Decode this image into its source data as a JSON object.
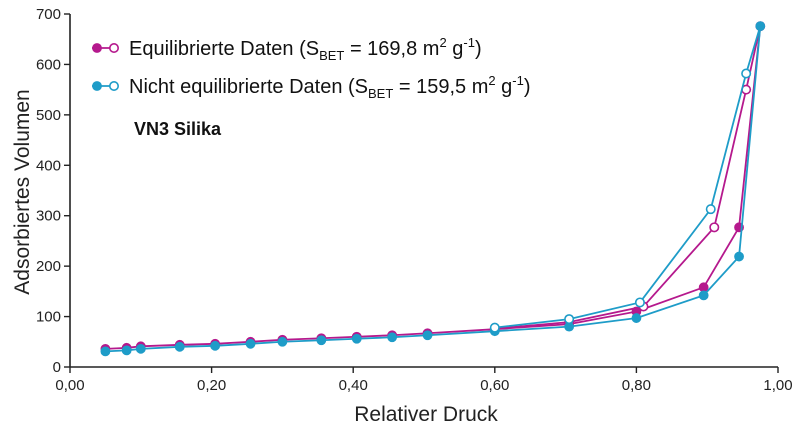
{
  "chart_data": {
    "type": "line",
    "xlabel": "Relativer Druck",
    "ylabel": "Adsorbiertes Volumen",
    "xlim": [
      0,
      1
    ],
    "ylim": [
      0,
      700
    ],
    "x_ticks": [
      0,
      0.2,
      0.4,
      0.6,
      0.8,
      1.0
    ],
    "x_tick_labels": [
      "0,00",
      "0,20",
      "0,40",
      "0,60",
      "0,80",
      "1,00"
    ],
    "y_ticks": [
      0,
      100,
      200,
      300,
      400,
      500,
      600,
      700
    ],
    "y_tick_labels": [
      "0",
      "100",
      "200",
      "300",
      "400",
      "500",
      "600",
      "700"
    ],
    "grid": false,
    "legend_position": "top-left",
    "annotation": "VN3 Silika",
    "series": [
      {
        "name": "Equilibrierte Daten",
        "legend": {
          "main": "Equilibrierte Daten (S",
          "sub": "BET",
          "mid": " = 169,8 m",
          "sup1": "2",
          "g": " g",
          "sup2": "-1",
          "end": ")"
        },
        "color": "#b5198d",
        "adsorption": [
          [
            0.05,
            36
          ],
          [
            0.08,
            38
          ],
          [
            0.1,
            41
          ],
          [
            0.155,
            44
          ],
          [
            0.205,
            46
          ],
          [
            0.255,
            50
          ],
          [
            0.3,
            54
          ],
          [
            0.355,
            57
          ],
          [
            0.405,
            60
          ],
          [
            0.455,
            63
          ],
          [
            0.505,
            67
          ],
          [
            0.6,
            75
          ],
          [
            0.705,
            85
          ],
          [
            0.8,
            110
          ],
          [
            0.895,
            158
          ],
          [
            0.945,
            277
          ],
          [
            0.975,
            676
          ]
        ],
        "desorption": [
          [
            0.975,
            676
          ],
          [
            0.955,
            550
          ],
          [
            0.91,
            277
          ],
          [
            0.81,
            120
          ],
          [
            0.705,
            89
          ],
          [
            0.6,
            76
          ]
        ]
      },
      {
        "name": "Nicht equilibrierte Daten",
        "legend": {
          "main": "Nicht equilibrierte Daten (S",
          "sub": "BET",
          "mid": " = 159,5 m",
          "sup1": "2",
          "g": " g",
          "sup2": "-1",
          "end": ")"
        },
        "color": "#1e9cc8",
        "adsorption": [
          [
            0.05,
            31
          ],
          [
            0.08,
            33
          ],
          [
            0.1,
            36
          ],
          [
            0.155,
            40
          ],
          [
            0.205,
            42
          ],
          [
            0.255,
            46
          ],
          [
            0.3,
            50
          ],
          [
            0.355,
            53
          ],
          [
            0.405,
            56
          ],
          [
            0.455,
            59
          ],
          [
            0.505,
            63
          ],
          [
            0.6,
            71
          ],
          [
            0.705,
            80
          ],
          [
            0.8,
            97
          ],
          [
            0.895,
            142
          ],
          [
            0.945,
            219
          ],
          [
            0.975,
            676
          ]
        ],
        "desorption": [
          [
            0.975,
            676
          ],
          [
            0.955,
            582
          ],
          [
            0.905,
            313
          ],
          [
            0.805,
            128
          ],
          [
            0.705,
            95
          ],
          [
            0.6,
            78
          ]
        ]
      }
    ]
  }
}
